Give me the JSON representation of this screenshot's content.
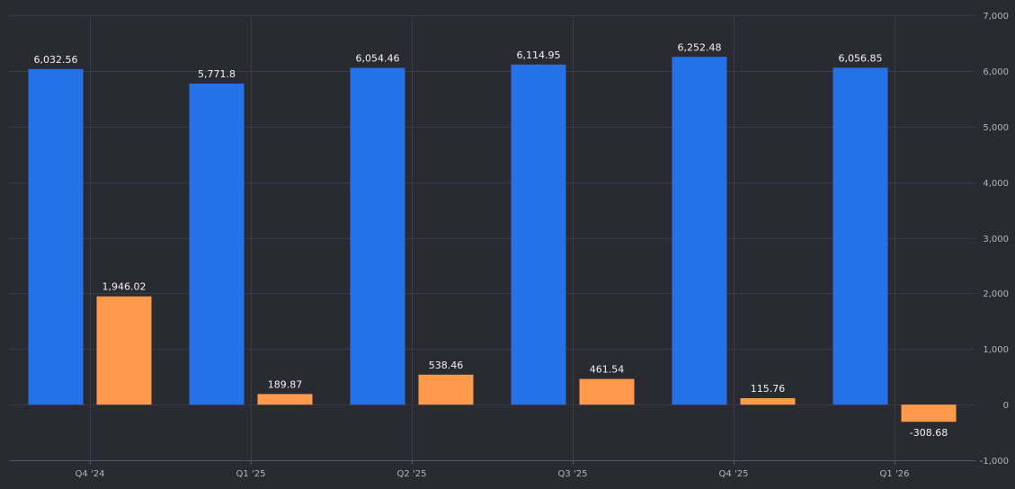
{
  "chart_data": {
    "type": "bar",
    "categories": [
      "Q4 '24",
      "Q1 '25",
      "Q2 '25",
      "Q3 '25",
      "Q4 '25",
      "Q1 '26"
    ],
    "series": [
      {
        "values": [
          6032.56,
          5771.8,
          6054.46,
          6114.95,
          6252.48,
          6056.85
        ],
        "color": "#2571e8"
      },
      {
        "values": [
          1946.02,
          189.87,
          538.46,
          461.54,
          115.76,
          -308.68
        ],
        "color": "#ff9a4d"
      }
    ],
    "value_labels": [
      [
        "6,032.56",
        "5,771.8",
        "6,054.46",
        "6,114.95",
        "6,252.48",
        "6,056.85"
      ],
      [
        "1,946.02",
        "189.87",
        "538.46",
        "461.54",
        "115.76",
        "-308.68"
      ]
    ],
    "y_ticks": [
      7000,
      6000,
      5000,
      4000,
      3000,
      2000,
      1000,
      0,
      -1000
    ],
    "y_tick_labels": [
      "7,000",
      "6,000",
      "5,000",
      "4,000",
      "3,000",
      "2,000",
      "1,000",
      "0",
      "-1,000"
    ],
    "ylim": [
      -1000,
      7000
    ],
    "y_axis_position": "right",
    "grid": true,
    "title": "",
    "xlabel": "",
    "ylabel": "",
    "colors": {
      "background": "#2a2a33",
      "grid": "#3b3b45",
      "axis_line": "#55555f",
      "value_label": "#f2f2f2",
      "tick_label": "#b4b4bc"
    }
  }
}
